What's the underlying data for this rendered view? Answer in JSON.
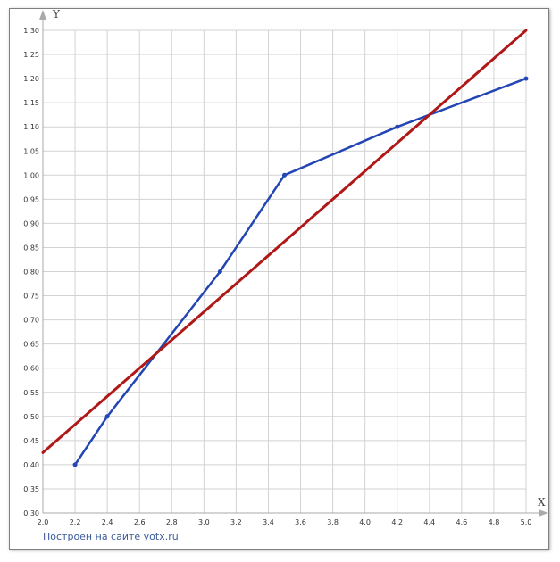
{
  "chart_data": {
    "type": "line",
    "xlabel": "X",
    "ylabel": "Y",
    "xlim": [
      2.0,
      5.0
    ],
    "ylim": [
      0.3,
      1.3
    ],
    "x_ticks": [
      "2.0",
      "2.2",
      "2.4",
      "2.6",
      "2.8",
      "3.0",
      "3.2",
      "3.4",
      "3.6",
      "3.8",
      "4.0",
      "4.2",
      "4.4",
      "4.6",
      "4.8",
      "5.0"
    ],
    "y_ticks": [
      "0.30",
      "0.35",
      "0.40",
      "0.45",
      "0.50",
      "0.55",
      "0.60",
      "0.65",
      "0.70",
      "0.75",
      "0.80",
      "0.85",
      "0.90",
      "0.95",
      "1.00",
      "1.05",
      "1.10",
      "1.15",
      "1.20",
      "1.25",
      "1.30"
    ],
    "grid": true,
    "series": [
      {
        "color": "#2346b4",
        "markers": true,
        "x": [
          2.2,
          2.4,
          3.1,
          3.5,
          4.2,
          5.0
        ],
        "y": [
          0.4,
          0.5,
          0.8,
          1.0,
          1.1,
          1.2
        ]
      },
      {
        "color": "#b01818",
        "markers": false,
        "x": [
          2.0,
          5.0
        ],
        "y": [
          0.425,
          1.3
        ]
      }
    ]
  },
  "credit": {
    "prefix": "Построен на сайте ",
    "link": "yotx.ru"
  }
}
